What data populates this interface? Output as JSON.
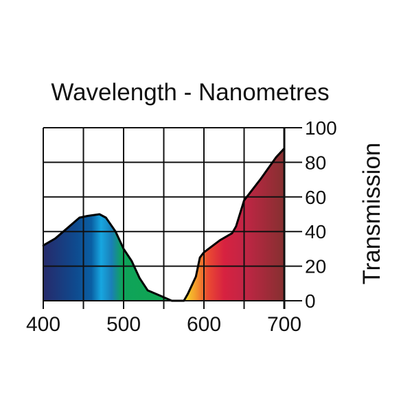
{
  "chart_data": {
    "type": "area",
    "title": "Wavelength - Nanometres",
    "xlabel": "Wavelength - Nanometres",
    "ylabel": "Transmission",
    "xlim": [
      400,
      700
    ],
    "ylim": [
      0,
      100
    ],
    "xticks": [
      400,
      500,
      600,
      700
    ],
    "xgrid": [
      400,
      450,
      500,
      550,
      600,
      650,
      700
    ],
    "yticks": [
      0,
      20,
      40,
      60,
      80,
      100
    ],
    "grid": true,
    "x": [
      400,
      415,
      430,
      445,
      455,
      470,
      478,
      490,
      500,
      510,
      520,
      530,
      545,
      555,
      560,
      575,
      580,
      590,
      595,
      600,
      620,
      635,
      640,
      650,
      670,
      690,
      700
    ],
    "y": [
      32,
      36,
      42,
      48,
      49,
      50,
      48,
      40,
      30,
      23,
      13,
      6,
      3,
      1,
      0,
      0,
      4,
      14,
      25,
      28,
      35,
      39,
      43,
      58,
      70,
      83,
      88
    ],
    "gradient": [
      {
        "nm": 400,
        "color": "#262a6b"
      },
      {
        "nm": 440,
        "color": "#0f4a8e"
      },
      {
        "nm": 460,
        "color": "#0a5fa3"
      },
      {
        "nm": 472,
        "color": "#17a6e0"
      },
      {
        "nm": 485,
        "color": "#1a7fb8"
      },
      {
        "nm": 498,
        "color": "#0fa35a"
      },
      {
        "nm": 560,
        "color": "#10a550"
      },
      {
        "nm": 572,
        "color": "#f7ec2a"
      },
      {
        "nm": 590,
        "color": "#f39a2c"
      },
      {
        "nm": 605,
        "color": "#ea4a32"
      },
      {
        "nm": 625,
        "color": "#d72240"
      },
      {
        "nm": 650,
        "color": "#c22545"
      },
      {
        "nm": 700,
        "color": "#853030"
      }
    ]
  }
}
